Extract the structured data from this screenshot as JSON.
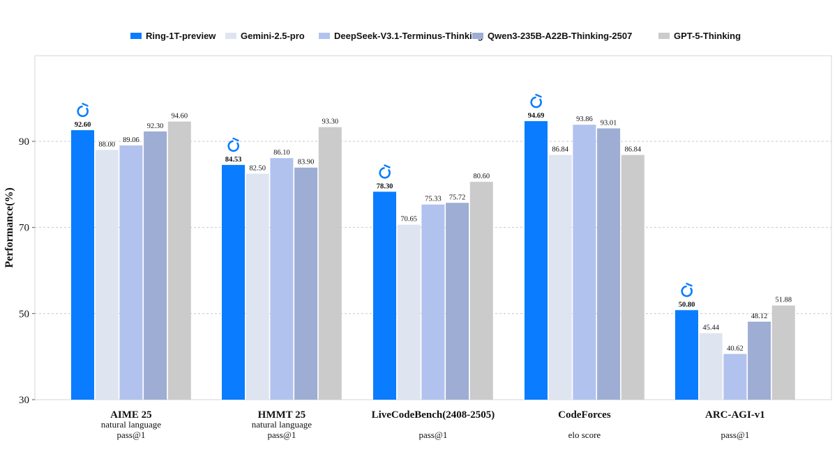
{
  "chart_data": {
    "type": "bar",
    "title": "",
    "xlabel": "",
    "ylabel": "Performance(%)",
    "ylim": [
      30,
      100
    ],
    "yticks": [
      30,
      50,
      70,
      90
    ],
    "grid": true,
    "legend_position": "top",
    "categories": [
      {
        "name": "AIME 25",
        "sub": [
          "natural language",
          "pass@1"
        ]
      },
      {
        "name": "HMMT 25",
        "sub": [
          "natural language",
          "pass@1"
        ]
      },
      {
        "name": "LiveCodeBench(2408-2505)",
        "sub": [
          "",
          "pass@1"
        ]
      },
      {
        "name": "CodeForces",
        "sub": [
          "",
          "elo score"
        ]
      },
      {
        "name": "ARC-AGI-v1",
        "sub": [
          "",
          "pass@1"
        ]
      }
    ],
    "series": [
      {
        "name": "Ring-1T-preview",
        "color": "#0a7cff",
        "highlight": true,
        "values": [
          92.6,
          84.53,
          78.3,
          94.69,
          50.8
        ],
        "labels": [
          "92.60",
          "84.53",
          "78.30",
          "94.69",
          "50.80"
        ]
      },
      {
        "name": "Gemini-2.5-pro",
        "color": "#dee5f1",
        "values": [
          88.0,
          82.5,
          70.65,
          86.84,
          45.44
        ],
        "labels": [
          "88.00",
          "82.50",
          "70.65",
          "86.84",
          "45.44"
        ]
      },
      {
        "name": "DeepSeek-V3.1-Terminus-Thinking",
        "color": "#b2c2ef",
        "values": [
          89.06,
          86.1,
          75.33,
          93.86,
          40.62
        ],
        "labels": [
          "89.06",
          "86.10",
          "75.33",
          "93.86",
          "40.62"
        ]
      },
      {
        "name": "Qwen3-235B-A22B-Thinking-2507",
        "color": "#9dadd3",
        "values": [
          92.3,
          83.9,
          75.72,
          93.01,
          48.12
        ],
        "labels": [
          "92.30",
          "83.90",
          "75.72",
          "93.01",
          "48.12"
        ]
      },
      {
        "name": "GPT-5-Thinking",
        "color": "#cbcbcb",
        "values": [
          94.6,
          93.3,
          80.6,
          86.84,
          51.88
        ],
        "labels": [
          "94.60",
          "93.30",
          "80.60",
          "86.84",
          "51.88"
        ]
      }
    ],
    "highlight_icon": "ring-logo-icon",
    "highlight_icon_color": "#0a7cff"
  }
}
